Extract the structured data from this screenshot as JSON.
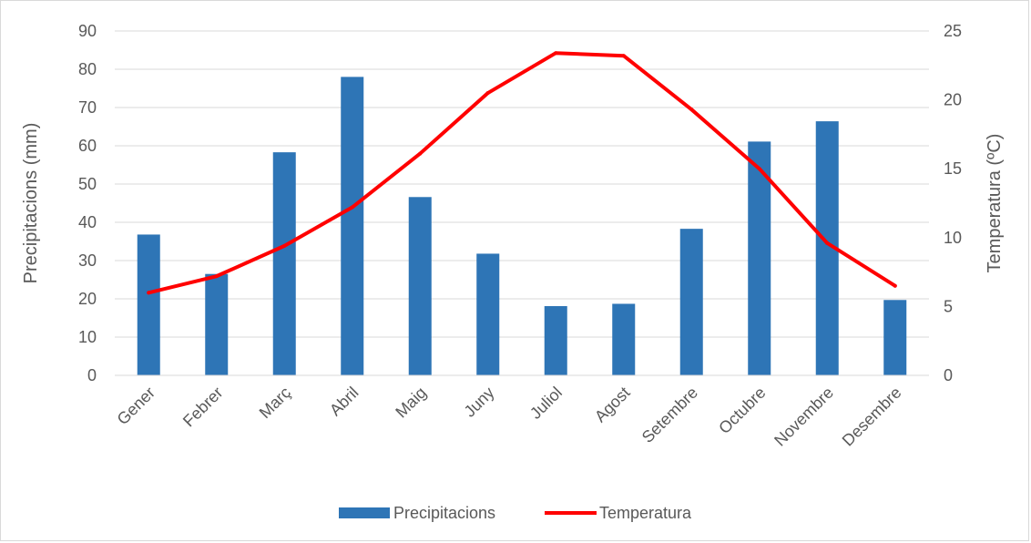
{
  "chart_data": {
    "type": "bar",
    "title": "",
    "categories": [
      "Gener",
      "Febrer",
      "Març",
      "Abril",
      "Maig",
      "Juny",
      "Juliol",
      "Agost",
      "Setembre",
      "Octubre",
      "Novembre",
      "Desembre"
    ],
    "series": [
      {
        "name": "Precipitacions",
        "type": "bar",
        "axis": "left",
        "color": "#2e75b6",
        "values": [
          36.8,
          26.5,
          58.3,
          78.0,
          46.6,
          31.8,
          18.1,
          18.7,
          38.3,
          61.1,
          66.4,
          19.7
        ]
      },
      {
        "name": "Temperatura",
        "type": "line",
        "axis": "right",
        "color": "#ff0000",
        "values": [
          6.0,
          7.2,
          9.4,
          12.2,
          16.1,
          20.5,
          23.4,
          23.2,
          19.3,
          15.0,
          9.6,
          6.5
        ]
      }
    ],
    "ylabel": "Precipitacions (mm)",
    "ylabel_right": "Temperatura (ºC)",
    "ylim": [
      0,
      90
    ],
    "ylim_right": [
      0,
      25
    ],
    "yticks": [
      0,
      10,
      20,
      30,
      40,
      50,
      60,
      70,
      80,
      90
    ],
    "yticks_right": [
      0,
      5,
      10,
      15,
      20,
      25
    ],
    "grid": true,
    "legend_position": "bottom"
  }
}
